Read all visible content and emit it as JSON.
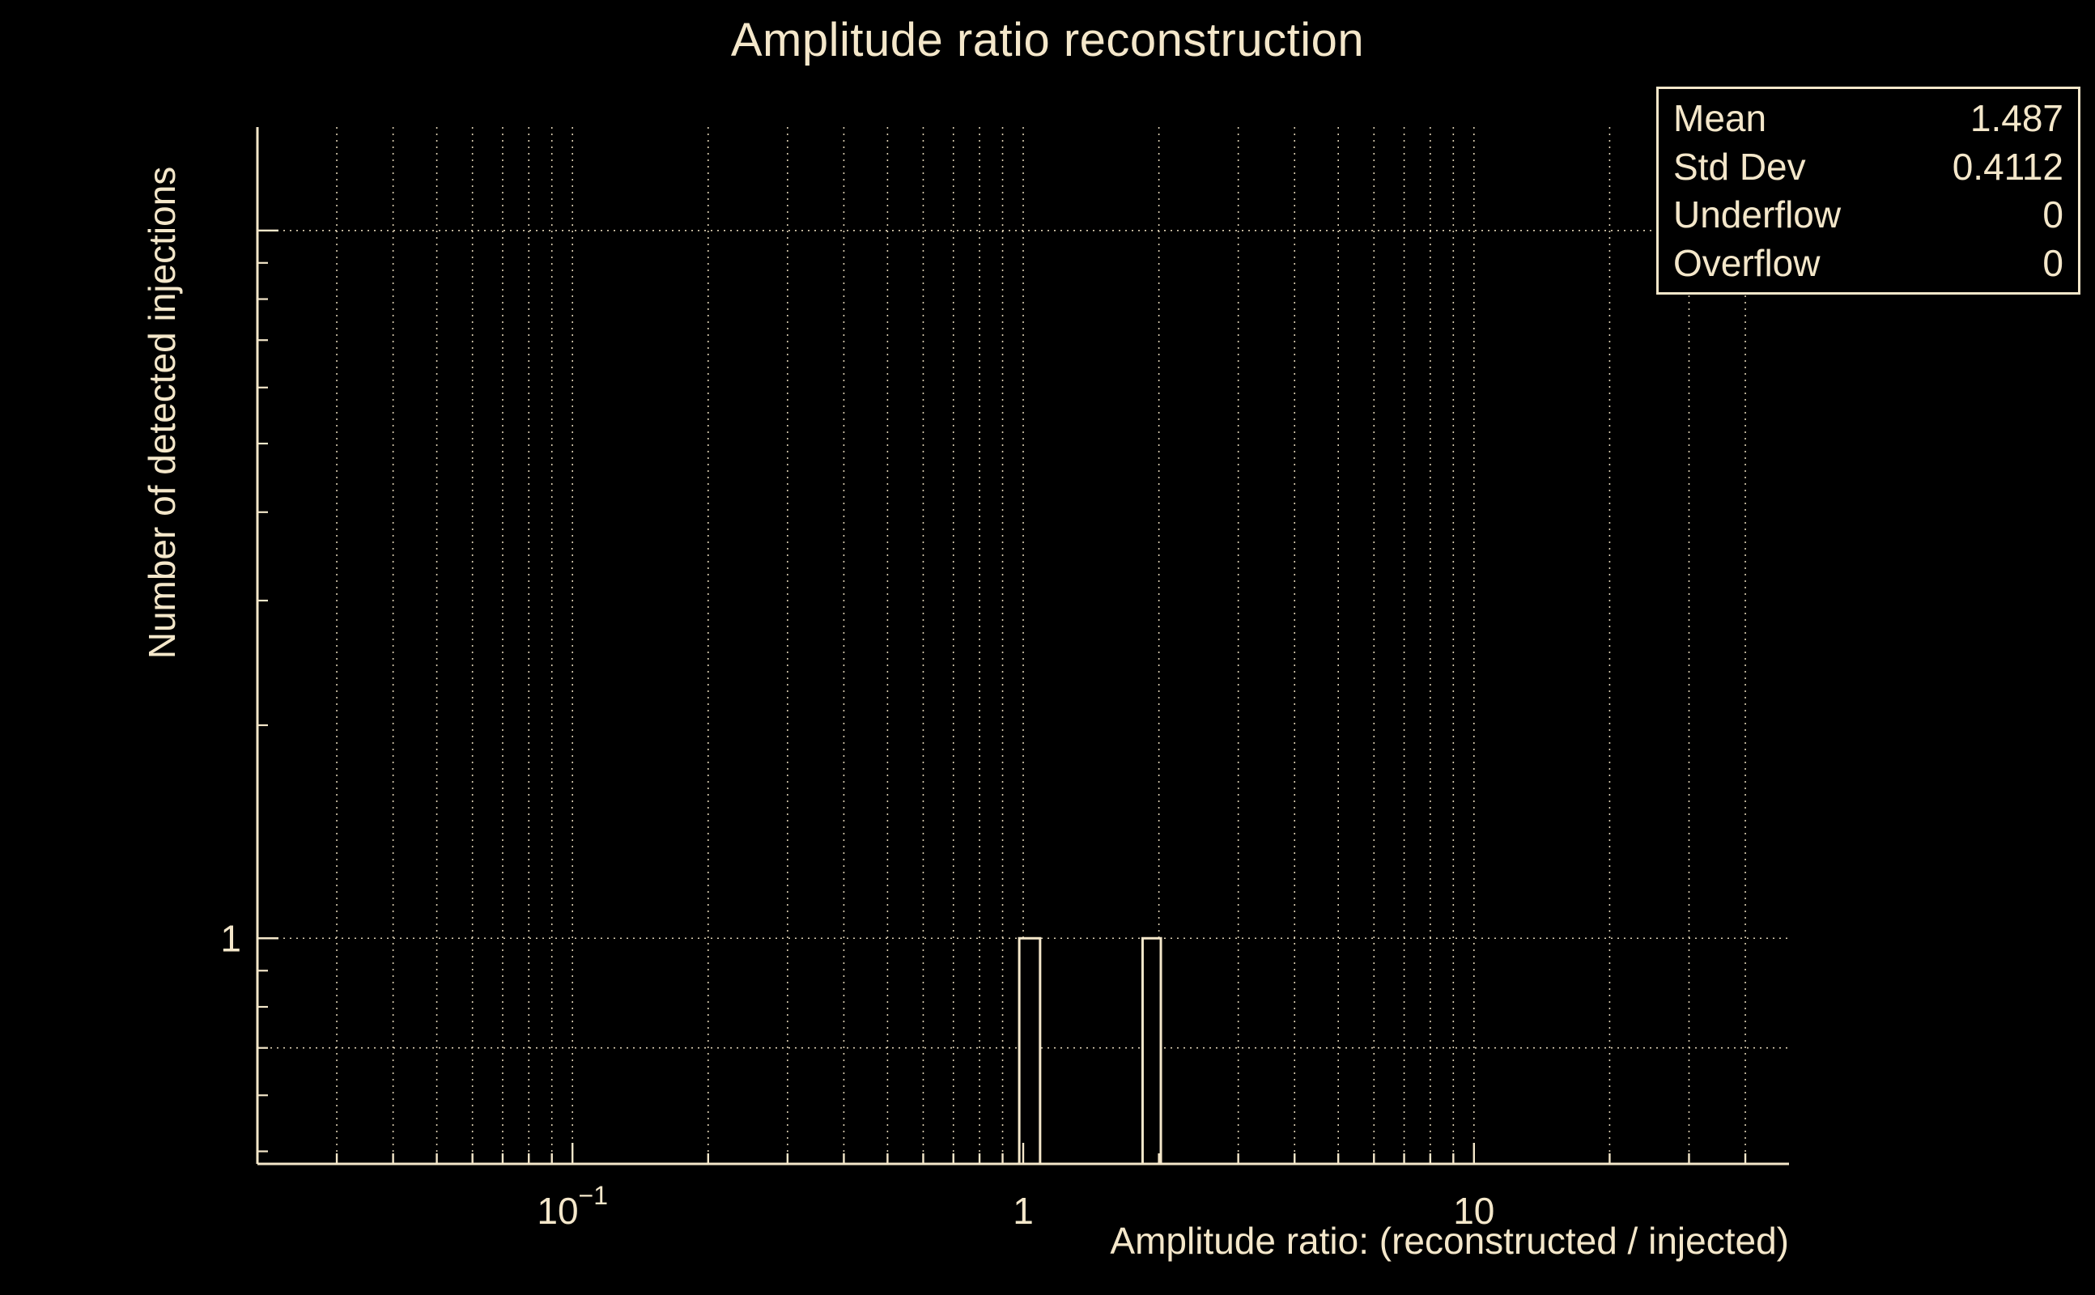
{
  "colors": {
    "background": "#000000",
    "foreground": "#f4e7ca",
    "grid": "#e9dcbd"
  },
  "stats_box": {
    "rows": [
      {
        "label": "Mean",
        "value": "1.487"
      },
      {
        "label": "Std Dev",
        "value": "0.4112"
      },
      {
        "label": "Underflow",
        "value": "0"
      },
      {
        "label": "Overflow",
        "value": "0"
      }
    ]
  },
  "chart_data": {
    "type": "bar",
    "title": "Amplitude ratio reconstruction",
    "xlabel": "Amplitude ratio: (reconstructed / injected)",
    "ylabel": "Number of detected injections",
    "x_scale": "log",
    "y_scale": "log",
    "x_range": [
      0.02,
      50
    ],
    "y_range": [
      0.48,
      14
    ],
    "grid": true,
    "x_ticks": [
      {
        "value": 0.1,
        "label": "10^−1"
      },
      {
        "value": 1,
        "label": "1"
      },
      {
        "value": 10,
        "label": "10"
      }
    ],
    "y_ticks": [
      {
        "value": 1,
        "label": "1"
      }
    ],
    "x_major_values": [
      0.1,
      1,
      10
    ],
    "y_major_values": [
      1,
      10
    ],
    "x_gridlines": [
      0.03,
      0.04,
      0.05,
      0.06,
      0.07,
      0.08,
      0.09,
      0.1,
      0.2,
      0.3,
      0.4,
      0.5,
      0.6,
      0.7,
      0.8,
      0.9,
      1,
      2,
      3,
      4,
      5,
      6,
      7,
      8,
      9,
      10,
      20,
      30,
      40
    ],
    "y_gridlines": [
      0.7,
      1,
      10
    ],
    "y_minor_ticks": [
      0.5,
      0.6,
      0.7,
      0.8,
      0.9,
      2,
      3,
      4,
      5,
      6,
      7,
      8,
      9
    ],
    "bars": [
      {
        "x_min": 0.98,
        "x_max": 1.09,
        "count": 1
      },
      {
        "x_min": 1.84,
        "x_max": 2.02,
        "count": 1
      }
    ],
    "stats": {
      "mean": 1.487,
      "std_dev": 0.4112,
      "underflow": 0,
      "overflow": 0
    }
  }
}
